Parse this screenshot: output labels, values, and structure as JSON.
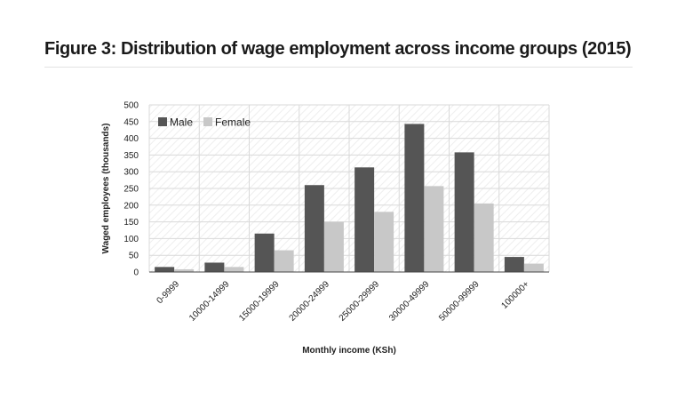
{
  "figure": {
    "title": "Figure 3: Distribution of wage employment across income groups (2015)"
  },
  "chart_data": {
    "type": "bar",
    "title": "Figure 3: Distribution of wage employment across income groups (2015)",
    "xlabel": "Monthly income (KSh)",
    "ylabel": "Waged employees (thousands)",
    "ylim": [
      0,
      500
    ],
    "yticks": [
      0,
      50,
      100,
      150,
      200,
      250,
      300,
      350,
      400,
      450,
      500
    ],
    "grid": true,
    "legend_position": "top-left",
    "categories": [
      "0-9999",
      "10000-14999",
      "15000-19999",
      "20000-24999",
      "25000-29999",
      "30000-49999",
      "50000-99999",
      "100000+"
    ],
    "series": [
      {
        "name": "Male",
        "color": "#555555",
        "values": [
          15,
          28,
          115,
          260,
          313,
          443,
          358,
          45
        ]
      },
      {
        "name": "Female",
        "color": "#c8c8c8",
        "values": [
          8,
          15,
          65,
          150,
          180,
          257,
          205,
          25
        ]
      }
    ]
  }
}
